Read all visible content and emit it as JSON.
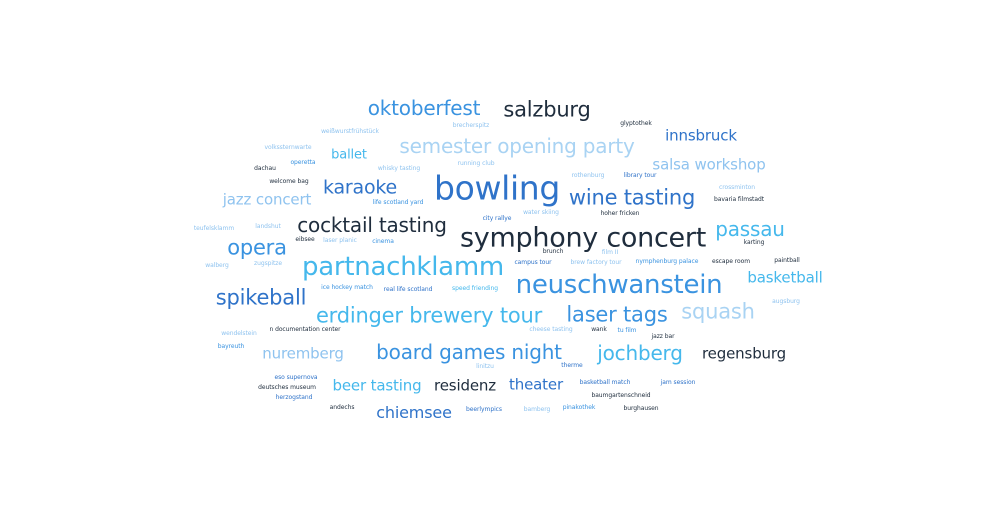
{
  "colors": {
    "navy": "#1f2d3d",
    "blue": "#2f73c9",
    "mid": "#3a93e0",
    "cyan": "#45b8ec",
    "light": "#8fc3ef",
    "pale": "#a9d3f3"
  },
  "words": [
    {
      "id": "oktoberfest",
      "text": "oktoberfest",
      "color": "mid"
    },
    {
      "id": "salzburg",
      "text": "salzburg",
      "color": "navy"
    },
    {
      "id": "glyptothek",
      "text": "glyptothek",
      "color": "navy"
    },
    {
      "id": "brecherspitz",
      "text": "brecherspitz",
      "color": "light"
    },
    {
      "id": "weisswurstfruehstueck",
      "text": "weißwurstfrühstück",
      "color": "light"
    },
    {
      "id": "innsbruck",
      "text": "innsbruck",
      "color": "blue"
    },
    {
      "id": "semester-opening-party",
      "text": "semester opening party",
      "color": "pale"
    },
    {
      "id": "volkssternwarte",
      "text": "volkssternwarte",
      "color": "light"
    },
    {
      "id": "ballet",
      "text": "ballet",
      "color": "cyan"
    },
    {
      "id": "operetta",
      "text": "operetta",
      "color": "mid"
    },
    {
      "id": "running-club",
      "text": "running club",
      "color": "light"
    },
    {
      "id": "salsa-workshop",
      "text": "salsa workshop",
      "color": "light"
    },
    {
      "id": "dachau",
      "text": "dachau",
      "color": "navy"
    },
    {
      "id": "whisky-tasting",
      "text": "whisky tasting",
      "color": "light"
    },
    {
      "id": "rothenburg",
      "text": "rothenburg",
      "color": "light"
    },
    {
      "id": "library-tour",
      "text": "library tour",
      "color": "blue"
    },
    {
      "id": "welcome-bag",
      "text": "welcome bag",
      "color": "navy"
    },
    {
      "id": "karaoke",
      "text": "karaoke",
      "color": "blue"
    },
    {
      "id": "bowling",
      "text": "bowling",
      "color": "blue"
    },
    {
      "id": "crossminton",
      "text": "crossminton",
      "color": "light"
    },
    {
      "id": "jazz-concert",
      "text": "jazz concert",
      "color": "light"
    },
    {
      "id": "life-scotland-yard",
      "text": "life scotland yard",
      "color": "mid"
    },
    {
      "id": "wine-tasting",
      "text": "wine tasting",
      "color": "blue"
    },
    {
      "id": "bavaria-filmstadt",
      "text": "bavaria filmstadt",
      "color": "navy"
    },
    {
      "id": "water-skiing",
      "text": "water skiing",
      "color": "light"
    },
    {
      "id": "hoher-fricken",
      "text": "hoher fricken",
      "color": "navy"
    },
    {
      "id": "city-rallye",
      "text": "city rallye",
      "color": "blue"
    },
    {
      "id": "teufelsklamm",
      "text": "teufelsklamm",
      "color": "light"
    },
    {
      "id": "landshut",
      "text": "landshut",
      "color": "light"
    },
    {
      "id": "cocktail-tasting",
      "text": "cocktail tasting",
      "color": "navy"
    },
    {
      "id": "passau",
      "text": "passau",
      "color": "cyan"
    },
    {
      "id": "eibsee",
      "text": "eibsee",
      "color": "navy"
    },
    {
      "id": "laser-planic",
      "text": "laser planic",
      "color": "light"
    },
    {
      "id": "cinema",
      "text": "cinema",
      "color": "mid"
    },
    {
      "id": "symphony-concert",
      "text": "symphony concert",
      "color": "navy"
    },
    {
      "id": "karting",
      "text": "karting",
      "color": "navy"
    },
    {
      "id": "opera",
      "text": "opera",
      "color": "mid"
    },
    {
      "id": "brunch",
      "text": "brunch",
      "color": "navy"
    },
    {
      "id": "film-ii",
      "text": "film II",
      "color": "light"
    },
    {
      "id": "walberg",
      "text": "walberg",
      "color": "light"
    },
    {
      "id": "zugspitze",
      "text": "zugspitze",
      "color": "light"
    },
    {
      "id": "partnachklamm",
      "text": "partnachklamm",
      "color": "cyan"
    },
    {
      "id": "campus-tour",
      "text": "campus tour",
      "color": "blue"
    },
    {
      "id": "brew-factory-tour",
      "text": "brew factory tour",
      "color": "light"
    },
    {
      "id": "nymphenburg-palace",
      "text": "nymphenburg palace",
      "color": "mid"
    },
    {
      "id": "escape-room",
      "text": "escape room",
      "color": "navy"
    },
    {
      "id": "paintball",
      "text": "paintball",
      "color": "navy"
    },
    {
      "id": "basketball",
      "text": "basketball",
      "color": "cyan"
    },
    {
      "id": "ice-hockey-match",
      "text": "ice hockey match",
      "color": "mid"
    },
    {
      "id": "real-life-scotland",
      "text": "real life scotland",
      "color": "blue"
    },
    {
      "id": "speed-friending",
      "text": "speed friending",
      "color": "cyan"
    },
    {
      "id": "neuschwanstein",
      "text": "neuschwanstein",
      "color": "mid"
    },
    {
      "id": "spikeball",
      "text": "spikeball",
      "color": "blue"
    },
    {
      "id": "augsburg",
      "text": "augsburg",
      "color": "light"
    },
    {
      "id": "erdinger-brewery-tour",
      "text": "erdinger brewery tour",
      "color": "cyan"
    },
    {
      "id": "laser-tags",
      "text": "laser tags",
      "color": "mid"
    },
    {
      "id": "squash",
      "text": "squash",
      "color": "pale"
    },
    {
      "id": "wendelstein",
      "text": "wendelstein",
      "color": "light"
    },
    {
      "id": "n-documentation-center",
      "text": "n documentation center",
      "color": "navy"
    },
    {
      "id": "cheese-tasting",
      "text": "cheese tasting",
      "color": "light"
    },
    {
      "id": "wank",
      "text": "wank",
      "color": "navy"
    },
    {
      "id": "tu-film",
      "text": "tu film",
      "color": "mid"
    },
    {
      "id": "bayreuth",
      "text": "bayreuth",
      "color": "mid"
    },
    {
      "id": "jazz-bar",
      "text": "jazz bar",
      "color": "navy"
    },
    {
      "id": "nuremberg",
      "text": "nuremberg",
      "color": "light"
    },
    {
      "id": "board-games-night",
      "text": "board games night",
      "color": "mid"
    },
    {
      "id": "jochberg",
      "text": "jochberg",
      "color": "cyan"
    },
    {
      "id": "regensburg",
      "text": "regensburg",
      "color": "navy"
    },
    {
      "id": "linitzu",
      "text": "linitzu",
      "color": "light"
    },
    {
      "id": "therme",
      "text": "therme",
      "color": "blue"
    },
    {
      "id": "eso-supernova",
      "text": "eso supernova",
      "color": "blue"
    },
    {
      "id": "beer-tasting",
      "text": "beer tasting",
      "color": "cyan"
    },
    {
      "id": "residenz",
      "text": "residenz",
      "color": "navy"
    },
    {
      "id": "theater",
      "text": "theater",
      "color": "blue"
    },
    {
      "id": "basketball-match",
      "text": "basketball match",
      "color": "blue"
    },
    {
      "id": "jam-session",
      "text": "jam session",
      "color": "blue"
    },
    {
      "id": "deutsches-museum",
      "text": "deutsches museum",
      "color": "navy"
    },
    {
      "id": "baumgartenschneid",
      "text": "baumgartenschneid",
      "color": "navy"
    },
    {
      "id": "herzogstand",
      "text": "herzogstand",
      "color": "blue"
    },
    {
      "id": "andechs",
      "text": "andechs",
      "color": "navy"
    },
    {
      "id": "chiemsee",
      "text": "chiemsee",
      "color": "blue"
    },
    {
      "id": "beerlympics",
      "text": "beerlympics",
      "color": "blue"
    },
    {
      "id": "bamberg",
      "text": "bamberg",
      "color": "light"
    },
    {
      "id": "pinakothek",
      "text": "pinakothek",
      "color": "mid"
    },
    {
      "id": "burghausen",
      "text": "burghausen",
      "color": "navy"
    }
  ]
}
